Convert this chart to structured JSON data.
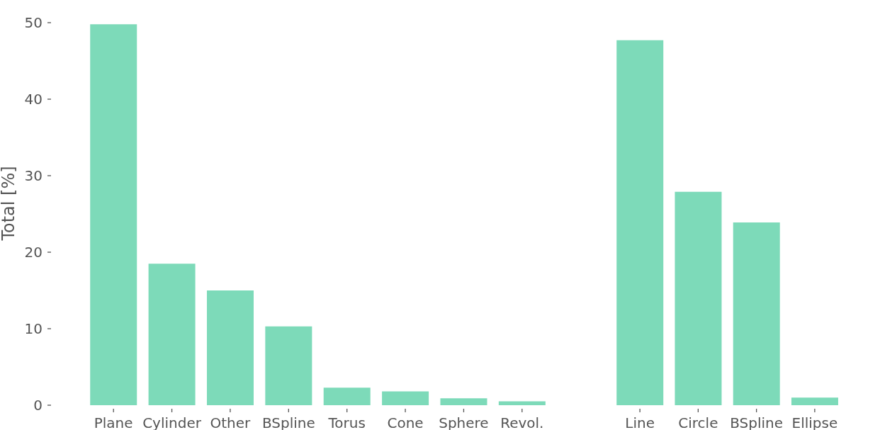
{
  "chart_data": [
    {
      "type": "bar",
      "ylabel": "Total [%]",
      "categories": [
        "Plane",
        "Cylinder",
        "Other",
        "BSpline",
        "Torus",
        "Cone",
        "Sphere",
        "Revol."
      ],
      "values": [
        49.8,
        18.5,
        15.0,
        10.3,
        2.3,
        1.8,
        0.9,
        0.5
      ],
      "color": "#7ddab9",
      "ylim": [
        0,
        50
      ],
      "yticks": [
        0,
        10,
        20,
        30,
        40,
        50
      ]
    },
    {
      "type": "bar",
      "categories": [
        "Line",
        "Circle",
        "BSpline",
        "Ellipse"
      ],
      "values": [
        47.7,
        27.9,
        23.9,
        1.0
      ],
      "color": "#7ddab9",
      "ylim": [
        0,
        50
      ],
      "tick_labels": "x"
    }
  ]
}
